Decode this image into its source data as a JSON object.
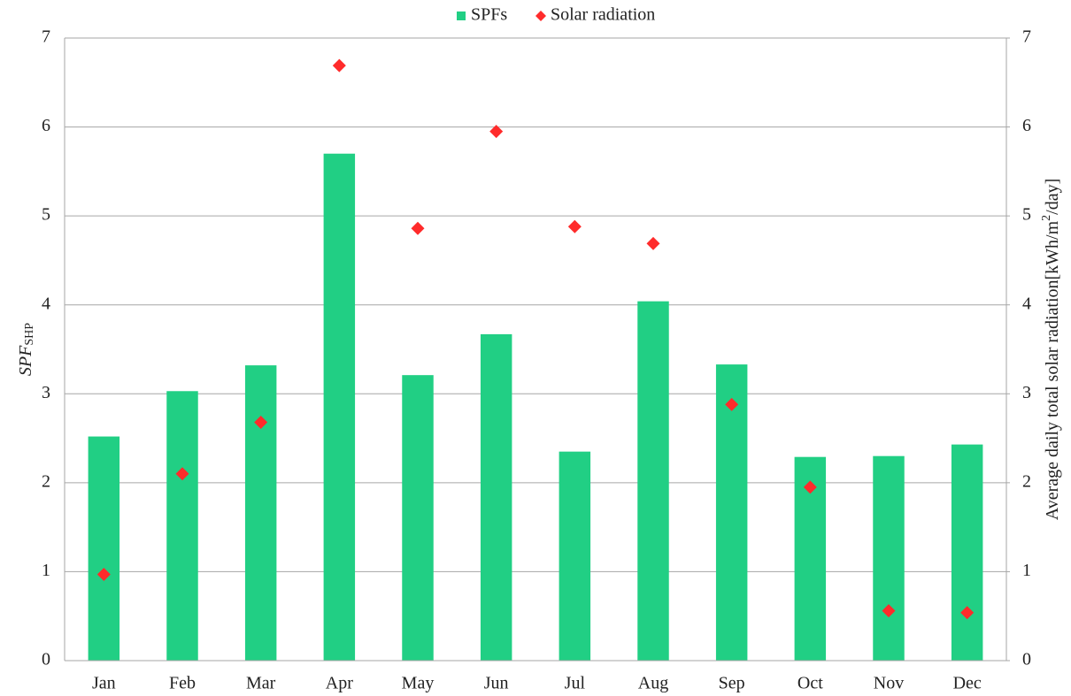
{
  "chart_data": {
    "type": "bar",
    "y_label": "SPF",
    "y_label_sub": "SHP",
    "y2_label": [
      "Average daily total solar radiation[kWh/m",
      "2",
      "/day]"
    ],
    "categories": [
      "Jan",
      "Feb",
      "Mar",
      "Apr",
      "May",
      "Jun",
      "Jul",
      "Aug",
      "Sep",
      "Oct",
      "Nov",
      "Dec"
    ],
    "series": [
      {
        "name": "SPFs",
        "type": "bar",
        "color": "#21cf84",
        "values": [
          2.52,
          3.03,
          3.32,
          5.7,
          3.21,
          3.67,
          2.35,
          4.04,
          3.33,
          2.29,
          2.3,
          2.43
        ]
      },
      {
        "name": "Solar radiation",
        "type": "scatter",
        "marker": "diamond",
        "axis": "y2",
        "color": "#ff2b2b",
        "values": [
          0.97,
          2.1,
          2.68,
          6.69,
          4.86,
          5.95,
          4.88,
          4.69,
          2.88,
          1.95,
          0.56,
          0.54
        ]
      }
    ],
    "ylim": [
      0,
      7
    ],
    "yticks": [
      0,
      1,
      2,
      3,
      4,
      5,
      6,
      7
    ],
    "y2lim": [
      0,
      7
    ],
    "y2ticks": [
      0,
      1,
      2,
      3,
      4,
      5,
      6,
      7
    ],
    "grid": true,
    "legend": "top"
  }
}
